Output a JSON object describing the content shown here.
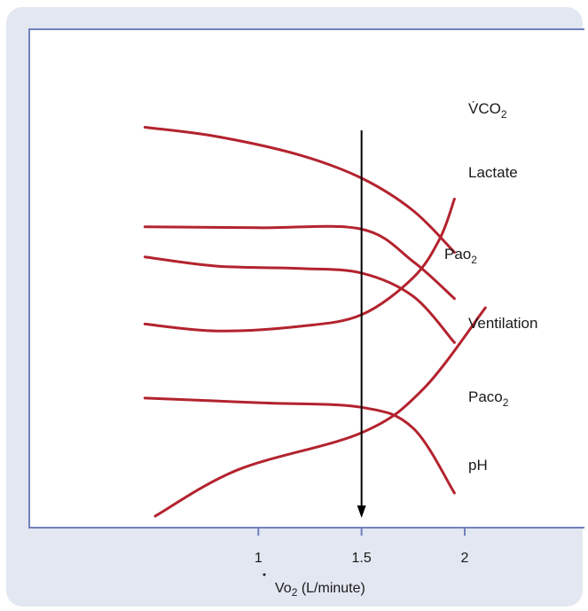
{
  "chart_data": {
    "type": "line",
    "title": "",
    "xlabel": {
      "main": "Vo",
      "sub": "2",
      "rest": " (L/minute)"
    },
    "ylabel": "",
    "x_ticks": [
      "1",
      "1.5",
      "2"
    ],
    "xlim": [
      0.5,
      2.4
    ],
    "threshold_x": 1.5,
    "series": [
      {
        "name": "VCO2",
        "label": {
          "main": "V̇CO",
          "sub": "2"
        },
        "points": [
          [
            0.45,
            32
          ],
          [
            0.8,
            36
          ],
          [
            1.2,
            44
          ],
          [
            1.5,
            54
          ],
          [
            1.75,
            68
          ],
          [
            1.95,
            86
          ]
        ]
      },
      {
        "name": "Lactate",
        "label": {
          "main": "Lactate",
          "sub": ""
        },
        "points": [
          [
            0.45,
            75
          ],
          [
            1.0,
            75.4
          ],
          [
            1.5,
            76
          ],
          [
            1.75,
            90
          ],
          [
            1.95,
            106
          ]
        ]
      },
      {
        "name": "PaO2",
        "label": {
          "main": "Pao",
          "sub": "2"
        },
        "points": [
          [
            0.45,
            117
          ],
          [
            0.8,
            120
          ],
          [
            1.2,
            118
          ],
          [
            1.5,
            113
          ],
          [
            1.75,
            97
          ],
          [
            1.88,
            80
          ],
          [
            1.95,
            63
          ]
        ]
      },
      {
        "name": "Ventilation",
        "label": {
          "main": "Ventilation",
          "sub": ""
        },
        "points": [
          [
            0.45,
            88
          ],
          [
            0.8,
            92
          ],
          [
            1.2,
            93
          ],
          [
            1.5,
            95
          ],
          [
            1.75,
            105
          ],
          [
            1.95,
            125
          ]
        ]
      },
      {
        "name": "PaCO2",
        "label": {
          "main": "Paco",
          "sub": "2"
        },
        "points": [
          [
            0.45,
            149
          ],
          [
            1.0,
            151
          ],
          [
            1.5,
            153
          ],
          [
            1.75,
            162
          ],
          [
            1.95,
            190
          ]
        ]
      },
      {
        "name": "pH",
        "label": {
          "main": "pH",
          "sub": ""
        },
        "points": [
          [
            0.5,
            200
          ],
          [
            0.9,
            180
          ],
          [
            1.5,
            164
          ],
          [
            1.8,
            145
          ],
          [
            2.1,
            110
          ]
        ]
      }
    ]
  },
  "colors": {
    "curve": "#b3232e",
    "frame": "#7280bd",
    "panel": "#e2e7f1",
    "arrow": "#000000"
  }
}
